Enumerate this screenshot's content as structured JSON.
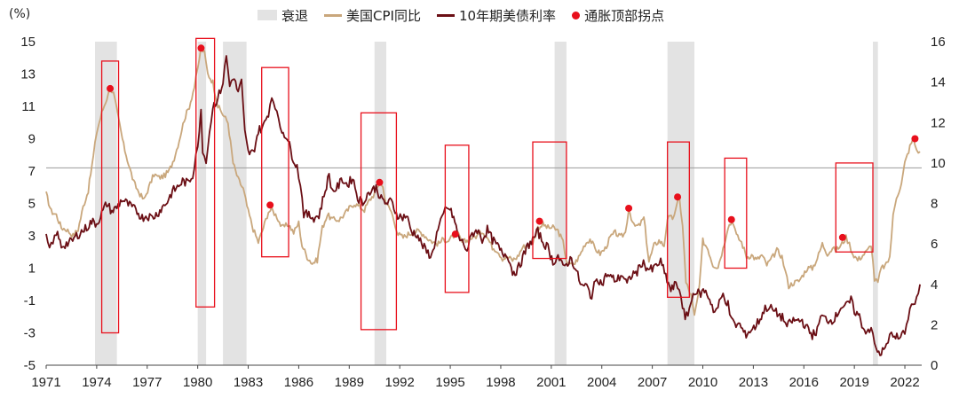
{
  "chart_data": {
    "type": "line",
    "unit_label": "(%)",
    "legend": {
      "recession": "衰退",
      "cpi": "美国CPI同比",
      "yield10y": "10年期美债利率",
      "peak": "通胀顶部拐点"
    },
    "colors": {
      "recession": "#e3e3e3",
      "cpi": "#c9a77c",
      "yield10y": "#6b0f15",
      "peak": "#e8101c",
      "box": "#e8101c",
      "refline": "#9a9a9a"
    },
    "x_range": [
      1971,
      2023
    ],
    "x_ticks": [
      "1971",
      "1974",
      "1977",
      "1980",
      "1983",
      "1986",
      "1989",
      "1992",
      "1995",
      "1998",
      "2001",
      "2004",
      "2007",
      "2010",
      "2013",
      "2016",
      "2019",
      "2022"
    ],
    "left_axis": {
      "series": "cpi",
      "range": [
        -5,
        15
      ],
      "ticks": [
        15,
        13,
        11,
        9,
        7,
        5,
        3,
        1,
        -1,
        -3,
        -5
      ]
    },
    "right_axis": {
      "series": "yield10y",
      "range": [
        0,
        16
      ],
      "ticks": [
        16,
        14,
        12,
        10,
        8,
        6,
        4,
        2,
        0
      ]
    },
    "reference_line": {
      "axis": "left",
      "value": 7.2
    },
    "recessions": [
      [
        1973.9,
        1975.2
      ],
      [
        1980.0,
        1980.5
      ],
      [
        1981.5,
        1982.9
      ],
      [
        1990.5,
        1991.2
      ],
      [
        2001.2,
        2001.9
      ],
      [
        2007.9,
        2009.5
      ],
      [
        2020.1,
        2020.4
      ]
    ],
    "cpi_series": [
      [
        1971.0,
        5.6
      ],
      [
        1971.3,
        4.5
      ],
      [
        1971.6,
        4.3
      ],
      [
        1971.9,
        3.5
      ],
      [
        1972.2,
        3.4
      ],
      [
        1972.6,
        3.0
      ],
      [
        1972.9,
        3.4
      ],
      [
        1973.2,
        4.8
      ],
      [
        1973.5,
        5.8
      ],
      [
        1973.8,
        7.9
      ],
      [
        1974.0,
        9.4
      ],
      [
        1974.3,
        10.6
      ],
      [
        1974.6,
        11.5
      ],
      [
        1974.8,
        12.1
      ],
      [
        1975.0,
        11.8
      ],
      [
        1975.3,
        10.2
      ],
      [
        1975.6,
        8.6
      ],
      [
        1975.9,
        7.4
      ],
      [
        1976.2,
        6.3
      ],
      [
        1976.5,
        5.7
      ],
      [
        1976.8,
        5.2
      ],
      [
        1977.1,
        6.0
      ],
      [
        1977.4,
        6.8
      ],
      [
        1977.7,
        6.6
      ],
      [
        1978.0,
        6.7
      ],
      [
        1978.3,
        7.0
      ],
      [
        1978.6,
        7.8
      ],
      [
        1978.9,
        8.9
      ],
      [
        1979.2,
        10.2
      ],
      [
        1979.5,
        11.0
      ],
      [
        1979.8,
        12.2
      ],
      [
        1980.0,
        13.3
      ],
      [
        1980.2,
        14.6
      ],
      [
        1980.4,
        14.3
      ],
      [
        1980.6,
        13.0
      ],
      [
        1980.9,
        12.5
      ],
      [
        1981.2,
        11.0
      ],
      [
        1981.5,
        10.5
      ],
      [
        1981.8,
        10.0
      ],
      [
        1982.1,
        7.5
      ],
      [
        1982.4,
        6.5
      ],
      [
        1982.7,
        5.9
      ],
      [
        1983.0,
        4.5
      ],
      [
        1983.3,
        3.4
      ],
      [
        1983.6,
        2.6
      ],
      [
        1983.9,
        3.5
      ],
      [
        1984.2,
        4.5
      ],
      [
        1984.4,
        4.6
      ],
      [
        1984.7,
        4.2
      ],
      [
        1985.0,
        3.5
      ],
      [
        1985.4,
        3.7
      ],
      [
        1985.7,
        3.2
      ],
      [
        1986.0,
        3.8
      ],
      [
        1986.2,
        2.4
      ],
      [
        1986.5,
        1.7
      ],
      [
        1986.8,
        1.3
      ],
      [
        1987.1,
        1.5
      ],
      [
        1987.4,
        3.5
      ],
      [
        1987.7,
        4.3
      ],
      [
        1988.0,
        4.0
      ],
      [
        1988.4,
        4.0
      ],
      [
        1988.7,
        4.3
      ],
      [
        1989.0,
        4.7
      ],
      [
        1989.3,
        5.0
      ],
      [
        1989.6,
        4.8
      ],
      [
        1989.9,
        4.6
      ],
      [
        1990.2,
        5.2
      ],
      [
        1990.5,
        5.6
      ],
      [
        1990.8,
        6.3
      ],
      [
        1991.0,
        6.0
      ],
      [
        1991.2,
        5.0
      ],
      [
        1991.5,
        4.5
      ],
      [
        1991.9,
        3.1
      ],
      [
        1992.2,
        2.9
      ],
      [
        1992.5,
        3.1
      ],
      [
        1992.8,
        3.2
      ],
      [
        1993.1,
        3.3
      ],
      [
        1993.4,
        3.1
      ],
      [
        1993.7,
        2.8
      ],
      [
        1994.0,
        2.6
      ],
      [
        1994.3,
        2.5
      ],
      [
        1994.6,
        2.8
      ],
      [
        1994.9,
        2.7
      ],
      [
        1995.2,
        3.0
      ],
      [
        1995.4,
        3.2
      ],
      [
        1995.7,
        2.6
      ],
      [
        1996.0,
        2.7
      ],
      [
        1996.3,
        2.9
      ],
      [
        1996.6,
        3.0
      ],
      [
        1996.9,
        3.3
      ],
      [
        1997.2,
        2.9
      ],
      [
        1997.5,
        2.3
      ],
      [
        1997.8,
        2.1
      ],
      [
        1998.1,
        1.6
      ],
      [
        1998.4,
        1.7
      ],
      [
        1998.7,
        1.5
      ],
      [
        1999.0,
        1.7
      ],
      [
        1999.3,
        2.3
      ],
      [
        1999.6,
        2.4
      ],
      [
        1999.9,
        2.6
      ],
      [
        2000.2,
        3.5
      ],
      [
        2000.5,
        3.7
      ],
      [
        2000.8,
        3.5
      ],
      [
        2001.1,
        3.5
      ],
      [
        2001.4,
        3.3
      ],
      [
        2001.7,
        2.6
      ],
      [
        2001.9,
        1.5
      ],
      [
        2002.1,
        1.2
      ],
      [
        2002.4,
        1.3
      ],
      [
        2002.7,
        1.8
      ],
      [
        2003.0,
        2.5
      ],
      [
        2003.3,
        2.8
      ],
      [
        2003.6,
        2.2
      ],
      [
        2003.9,
        1.9
      ],
      [
        2004.2,
        2.2
      ],
      [
        2004.5,
        2.9
      ],
      [
        2004.8,
        3.2
      ],
      [
        2005.1,
        2.9
      ],
      [
        2005.4,
        3.2
      ],
      [
        2005.6,
        4.7
      ],
      [
        2005.9,
        3.6
      ],
      [
        2006.2,
        3.6
      ],
      [
        2006.5,
        4.1
      ],
      [
        2006.8,
        1.4
      ],
      [
        2007.1,
        2.4
      ],
      [
        2007.4,
        2.7
      ],
      [
        2007.7,
        2.4
      ],
      [
        2007.9,
        4.1
      ],
      [
        2008.2,
        4.1
      ],
      [
        2008.4,
        4.6
      ],
      [
        2008.6,
        5.4
      ],
      [
        2008.8,
        3.7
      ],
      [
        2009.0,
        0.1
      ],
      [
        2009.3,
        -0.7
      ],
      [
        2009.5,
        -2.0
      ],
      [
        2009.8,
        -0.2
      ],
      [
        2010.0,
        2.7
      ],
      [
        2010.3,
        2.2
      ],
      [
        2010.6,
        1.2
      ],
      [
        2010.9,
        1.1
      ],
      [
        2011.2,
        2.2
      ],
      [
        2011.5,
        3.6
      ],
      [
        2011.8,
        3.9
      ],
      [
        2012.0,
        3.0
      ],
      [
        2012.3,
        2.6
      ],
      [
        2012.6,
        1.7
      ],
      [
        2012.9,
        1.8
      ],
      [
        2013.2,
        1.5
      ],
      [
        2013.5,
        1.8
      ],
      [
        2013.8,
        1.2
      ],
      [
        2014.1,
        1.6
      ],
      [
        2014.4,
        2.1
      ],
      [
        2014.7,
        1.7
      ],
      [
        2014.9,
        0.8
      ],
      [
        2015.1,
        -0.1
      ],
      [
        2015.4,
        0.1
      ],
      [
        2015.7,
        0.2
      ],
      [
        2015.9,
        0.5
      ],
      [
        2016.2,
        1.0
      ],
      [
        2016.5,
        1.0
      ],
      [
        2016.8,
        1.6
      ],
      [
        2017.1,
        2.5
      ],
      [
        2017.4,
        1.9
      ],
      [
        2017.7,
        2.2
      ],
      [
        2017.9,
        2.1
      ],
      [
        2018.2,
        2.4
      ],
      [
        2018.5,
        2.9
      ],
      [
        2018.7,
        2.5
      ],
      [
        2018.9,
        1.9
      ],
      [
        2019.2,
        1.5
      ],
      [
        2019.5,
        1.8
      ],
      [
        2019.8,
        2.1
      ],
      [
        2020.0,
        2.5
      ],
      [
        2020.2,
        0.3
      ],
      [
        2020.4,
        0.1
      ],
      [
        2020.6,
        1.0
      ],
      [
        2020.9,
        1.2
      ],
      [
        2021.1,
        1.7
      ],
      [
        2021.3,
        4.2
      ],
      [
        2021.5,
        5.4
      ],
      [
        2021.8,
        6.2
      ],
      [
        2022.0,
        7.5
      ],
      [
        2022.3,
        8.5
      ],
      [
        2022.5,
        9.0
      ],
      [
        2022.7,
        8.3
      ],
      [
        2022.9,
        8.2
      ]
    ],
    "yield_series": [
      [
        1971.0,
        6.3
      ],
      [
        1971.2,
        5.7
      ],
      [
        1971.4,
        6.0
      ],
      [
        1971.6,
        6.6
      ],
      [
        1971.9,
        5.9
      ],
      [
        1972.2,
        6.0
      ],
      [
        1972.5,
        6.1
      ],
      [
        1972.8,
        6.4
      ],
      [
        1973.1,
        6.6
      ],
      [
        1973.4,
        6.8
      ],
      [
        1973.7,
        7.1
      ],
      [
        1974.0,
        7.0
      ],
      [
        1974.3,
        7.5
      ],
      [
        1974.6,
        8.0
      ],
      [
        1974.9,
        7.6
      ],
      [
        1975.2,
        7.8
      ],
      [
        1975.5,
        8.2
      ],
      [
        1975.8,
        8.0
      ],
      [
        1976.1,
        7.8
      ],
      [
        1976.4,
        7.6
      ],
      [
        1976.7,
        7.3
      ],
      [
        1977.0,
        7.4
      ],
      [
        1977.3,
        7.3
      ],
      [
        1977.6,
        7.5
      ],
      [
        1977.9,
        7.8
      ],
      [
        1978.2,
        8.1
      ],
      [
        1978.5,
        8.6
      ],
      [
        1978.8,
        8.8
      ],
      [
        1979.1,
        9.1
      ],
      [
        1979.4,
        9.0
      ],
      [
        1979.7,
        9.4
      ],
      [
        1979.9,
        10.5
      ],
      [
        1980.1,
        11.4
      ],
      [
        1980.2,
        12.8
      ],
      [
        1980.3,
        10.5
      ],
      [
        1980.5,
        10.2
      ],
      [
        1980.7,
        11.5
      ],
      [
        1980.9,
        12.8
      ],
      [
        1981.2,
        13.2
      ],
      [
        1981.5,
        14.0
      ],
      [
        1981.7,
        15.3
      ],
      [
        1981.9,
        13.8
      ],
      [
        1982.1,
        14.3
      ],
      [
        1982.4,
        13.5
      ],
      [
        1982.6,
        14.0
      ],
      [
        1982.8,
        11.5
      ],
      [
        1983.0,
        10.5
      ],
      [
        1983.3,
        10.5
      ],
      [
        1983.6,
        11.6
      ],
      [
        1983.9,
        11.8
      ],
      [
        1984.2,
        12.5
      ],
      [
        1984.4,
        13.3
      ],
      [
        1984.6,
        12.9
      ],
      [
        1984.8,
        12.0
      ],
      [
        1985.0,
        11.6
      ],
      [
        1985.3,
        11.3
      ],
      [
        1985.6,
        10.4
      ],
      [
        1985.9,
        9.8
      ],
      [
        1986.1,
        9.0
      ],
      [
        1986.3,
        7.5
      ],
      [
        1986.6,
        7.4
      ],
      [
        1986.9,
        7.3
      ],
      [
        1987.2,
        7.4
      ],
      [
        1987.5,
        8.4
      ],
      [
        1987.8,
        9.4
      ],
      [
        1988.0,
        8.6
      ],
      [
        1988.3,
        8.8
      ],
      [
        1988.6,
        9.2
      ],
      [
        1988.9,
        8.9
      ],
      [
        1989.2,
        9.3
      ],
      [
        1989.5,
        8.3
      ],
      [
        1989.8,
        8.0
      ],
      [
        1990.0,
        8.4
      ],
      [
        1990.3,
        8.6
      ],
      [
        1990.6,
        8.8
      ],
      [
        1990.9,
        8.2
      ],
      [
        1991.2,
        8.0
      ],
      [
        1991.5,
        8.1
      ],
      [
        1991.8,
        7.5
      ],
      [
        1992.1,
        7.3
      ],
      [
        1992.4,
        7.4
      ],
      [
        1992.7,
        6.6
      ],
      [
        1993.0,
        6.5
      ],
      [
        1993.3,
        6.0
      ],
      [
        1993.6,
        5.6
      ],
      [
        1993.9,
        5.4
      ],
      [
        1994.2,
        6.5
      ],
      [
        1994.5,
        7.2
      ],
      [
        1994.7,
        7.7
      ],
      [
        1994.9,
        7.8
      ],
      [
        1995.2,
        7.3
      ],
      [
        1995.5,
        6.3
      ],
      [
        1995.8,
        6.0
      ],
      [
        1996.0,
        5.7
      ],
      [
        1996.3,
        6.5
      ],
      [
        1996.6,
        6.7
      ],
      [
        1996.9,
        6.2
      ],
      [
        1997.2,
        6.7
      ],
      [
        1997.5,
        6.2
      ],
      [
        1997.8,
        5.9
      ],
      [
        1998.1,
        5.5
      ],
      [
        1998.4,
        5.5
      ],
      [
        1998.7,
        4.6
      ],
      [
        1999.0,
        4.7
      ],
      [
        1999.3,
        5.3
      ],
      [
        1999.6,
        5.9
      ],
      [
        1999.9,
        6.2
      ],
      [
        2000.2,
        6.6
      ],
      [
        2000.5,
        6.1
      ],
      [
        2000.8,
        5.8
      ],
      [
        2001.1,
        5.1
      ],
      [
        2001.4,
        5.4
      ],
      [
        2001.7,
        4.8
      ],
      [
        2001.9,
        5.0
      ],
      [
        2002.2,
        5.3
      ],
      [
        2002.5,
        4.6
      ],
      [
        2002.8,
        3.9
      ],
      [
        2003.1,
        3.9
      ],
      [
        2003.4,
        3.4
      ],
      [
        2003.7,
        4.4
      ],
      [
        2004.0,
        4.0
      ],
      [
        2004.3,
        4.5
      ],
      [
        2004.6,
        4.3
      ],
      [
        2004.9,
        4.2
      ],
      [
        2005.2,
        4.5
      ],
      [
        2005.5,
        4.0
      ],
      [
        2005.8,
        4.5
      ],
      [
        2006.1,
        4.6
      ],
      [
        2006.4,
        5.1
      ],
      [
        2006.7,
        4.8
      ],
      [
        2007.0,
        4.7
      ],
      [
        2007.3,
        5.0
      ],
      [
        2007.5,
        5.1
      ],
      [
        2007.8,
        4.4
      ],
      [
        2008.1,
        3.7
      ],
      [
        2008.4,
        4.0
      ],
      [
        2008.6,
        3.8
      ],
      [
        2008.8,
        3.0
      ],
      [
        2008.95,
        2.2
      ],
      [
        2009.2,
        2.8
      ],
      [
        2009.5,
        3.7
      ],
      [
        2009.8,
        3.5
      ],
      [
        2010.1,
        3.7
      ],
      [
        2010.4,
        3.3
      ],
      [
        2010.7,
        2.6
      ],
      [
        2010.9,
        2.9
      ],
      [
        2011.2,
        3.5
      ],
      [
        2011.5,
        3.0
      ],
      [
        2011.7,
        2.2
      ],
      [
        2011.9,
        2.0
      ],
      [
        2012.2,
        2.0
      ],
      [
        2012.5,
        1.5
      ],
      [
        2012.8,
        1.7
      ],
      [
        2013.1,
        1.9
      ],
      [
        2013.4,
        2.3
      ],
      [
        2013.7,
        2.8
      ],
      [
        2013.9,
        2.9
      ],
      [
        2014.2,
        2.7
      ],
      [
        2014.5,
        2.5
      ],
      [
        2014.8,
        2.3
      ],
      [
        2015.0,
        1.9
      ],
      [
        2015.3,
        2.2
      ],
      [
        2015.6,
        2.2
      ],
      [
        2015.9,
        2.2
      ],
      [
        2016.2,
        1.8
      ],
      [
        2016.5,
        1.5
      ],
      [
        2016.8,
        1.7
      ],
      [
        2017.0,
        2.4
      ],
      [
        2017.3,
        2.3
      ],
      [
        2017.6,
        2.2
      ],
      [
        2017.9,
        2.4
      ],
      [
        2018.2,
        2.9
      ],
      [
        2018.5,
        2.9
      ],
      [
        2018.8,
        3.2
      ],
      [
        2019.0,
        2.7
      ],
      [
        2019.3,
        2.4
      ],
      [
        2019.6,
        1.7
      ],
      [
        2019.9,
        1.8
      ],
      [
        2020.1,
        1.5
      ],
      [
        2020.3,
        0.7
      ],
      [
        2020.6,
        0.6
      ],
      [
        2020.9,
        0.9
      ],
      [
        2021.1,
        1.4
      ],
      [
        2021.3,
        1.6
      ],
      [
        2021.6,
        1.3
      ],
      [
        2021.9,
        1.5
      ],
      [
        2022.1,
        1.9
      ],
      [
        2022.3,
        2.9
      ],
      [
        2022.5,
        3.0
      ],
      [
        2022.7,
        3.2
      ],
      [
        2022.9,
        4.0
      ]
    ],
    "peak_points": [
      [
        1974.8,
        12.1
      ],
      [
        1980.2,
        14.6
      ],
      [
        1984.3,
        4.9
      ],
      [
        1990.8,
        6.3
      ],
      [
        1995.3,
        3.1
      ],
      [
        2000.3,
        3.9
      ],
      [
        2005.6,
        4.7
      ],
      [
        2008.5,
        5.4
      ],
      [
        2011.7,
        4.0
      ],
      [
        2018.3,
        2.9
      ],
      [
        2022.6,
        9.0
      ]
    ],
    "highlight_boxes": [
      [
        1974.3,
        1975.3,
        -3.0,
        13.8
      ],
      [
        1979.9,
        1981.0,
        -1.4,
        15.2
      ],
      [
        1983.8,
        1985.4,
        1.7,
        13.4
      ],
      [
        1989.7,
        1991.8,
        -2.8,
        10.6
      ],
      [
        1994.7,
        1996.1,
        -0.5,
        8.6
      ],
      [
        1999.9,
        2001.9,
        1.6,
        8.8
      ],
      [
        2007.9,
        2009.2,
        -0.8,
        8.8
      ],
      [
        2011.3,
        2012.6,
        1.0,
        7.8
      ],
      [
        2017.9,
        2020.1,
        2.0,
        7.5
      ]
    ]
  }
}
